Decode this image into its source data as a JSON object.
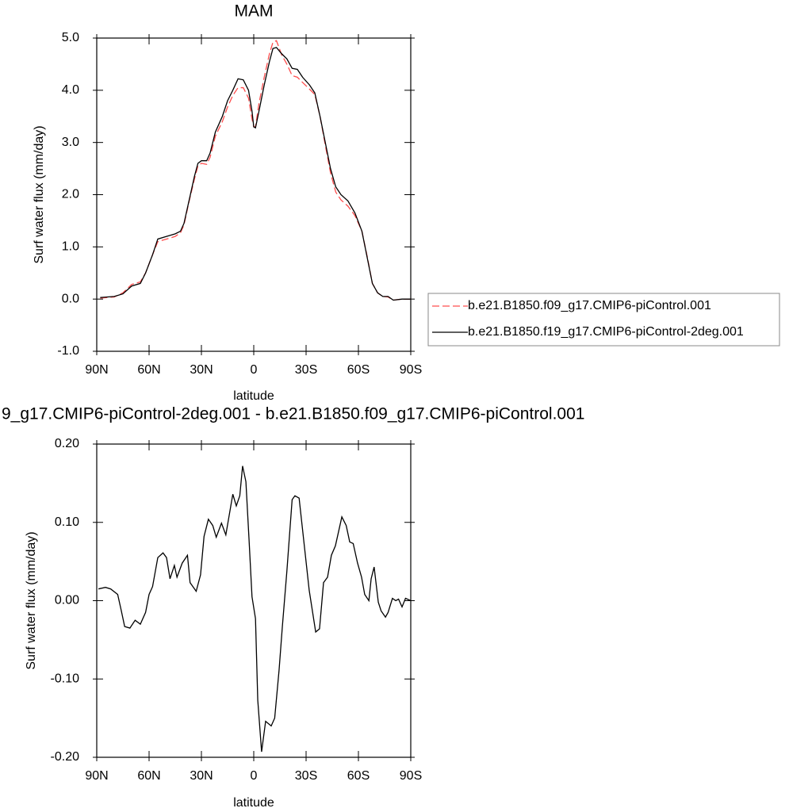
{
  "chart_data": [
    {
      "type": "line",
      "title": "MAM",
      "x_label": "latitude",
      "y_label": "Surf water flux (mm/day)",
      "x": [
        88,
        80,
        75,
        70,
        65,
        62,
        58,
        55,
        50,
        45,
        42,
        40,
        37,
        34,
        32,
        30,
        27,
        25,
        22,
        18,
        15,
        12,
        9,
        6,
        3,
        1,
        0,
        -1,
        -3,
        -6,
        -9,
        -11,
        -13,
        -16,
        -19,
        -22,
        -25,
        -28,
        -32,
        -35,
        -38,
        -41,
        -44,
        -47,
        -50,
        -54,
        -58,
        -62,
        -65,
        -68,
        -71,
        -74,
        -77,
        -80,
        -85,
        -90
      ],
      "series": [
        {
          "name": "b.e21.B1850.f09_g17.CMIP6-piControl.001",
          "color": "#ff4d4d",
          "line_style": "dashed",
          "values": [
            0.02,
            0.04,
            0.12,
            0.28,
            0.33,
            0.5,
            0.85,
            1.1,
            1.15,
            1.2,
            1.27,
            1.42,
            1.88,
            2.3,
            2.55,
            2.6,
            2.58,
            2.72,
            3.12,
            3.4,
            3.68,
            3.9,
            4.05,
            4.05,
            3.85,
            3.45,
            3.3,
            3.3,
            3.75,
            4.25,
            4.7,
            4.92,
            4.95,
            4.68,
            4.5,
            4.28,
            4.25,
            4.15,
            4.02,
            3.92,
            3.5,
            2.95,
            2.42,
            2.05,
            1.9,
            1.78,
            1.6,
            1.3,
            0.82,
            0.3,
            0.12,
            0.05,
            0.04,
            -0.02,
            0.0,
            0.0
          ]
        },
        {
          "name": "b.e21.B1850.f19_g17.CMIP6-piControl-2deg.001",
          "color": "#000000",
          "line_style": "solid",
          "values": [
            0.03,
            0.05,
            0.1,
            0.25,
            0.3,
            0.5,
            0.85,
            1.15,
            1.2,
            1.25,
            1.3,
            1.45,
            1.9,
            2.35,
            2.6,
            2.65,
            2.65,
            2.8,
            3.2,
            3.5,
            3.8,
            4.0,
            4.22,
            4.2,
            4.0,
            3.6,
            3.3,
            3.28,
            3.6,
            4.1,
            4.55,
            4.8,
            4.82,
            4.7,
            4.6,
            4.42,
            4.4,
            4.25,
            4.1,
            3.95,
            3.5,
            3.0,
            2.5,
            2.15,
            2.0,
            1.88,
            1.65,
            1.3,
            0.8,
            0.3,
            0.12,
            0.05,
            0.05,
            -0.02,
            0.0,
            0.0
          ]
        }
      ],
      "xlim": [
        90,
        -90
      ],
      "xticks": [
        {
          "value": 90,
          "label": "90N"
        },
        {
          "value": 60,
          "label": "60N"
        },
        {
          "value": 30,
          "label": "30N"
        },
        0,
        {
          "value": -30,
          "label": "30S"
        },
        {
          "value": -60,
          "label": "60S"
        },
        {
          "value": -90,
          "label": "90S"
        }
      ],
      "ylim": [
        -1,
        5
      ],
      "yticks": [
        {
          "value": 5,
          "label": "5.0"
        },
        {
          "value": 4,
          "label": "4.0"
        },
        {
          "value": 3,
          "label": "3.0"
        },
        {
          "value": 2,
          "label": "2.0"
        },
        {
          "value": 1,
          "label": "1.0"
        },
        {
          "value": 0,
          "label": "0.0"
        },
        {
          "value": -1,
          "label": "-1.0"
        }
      ],
      "legend": "right"
    },
    {
      "type": "line",
      "title": "9_g17.CMIP6-piControl-2deg.001 - b.e21.B1850.f09_g17.CMIP6-piControl.001",
      "x_label": "latitude",
      "y_label": "Surf water flux (mm/day)",
      "x": [
        89,
        85,
        82,
        78,
        76,
        74,
        71,
        68,
        65,
        62,
        60,
        58,
        55,
        52,
        50,
        48,
        45.5,
        44,
        41,
        38,
        36.5,
        33,
        30.5,
        28.5,
        26,
        23.5,
        21.5,
        18.5,
        16,
        12,
        10,
        8,
        6.4,
        4.5,
        2.7,
        1,
        -1,
        -2.3,
        -4.5,
        -6.8,
        -10,
        -12,
        -14.5,
        -16.4,
        -19,
        -22,
        -23.6,
        -26,
        -28.6,
        -31.8,
        -35.5,
        -37.7,
        -40,
        -42.3,
        -44.5,
        -46.8,
        -50.5,
        -53,
        -55,
        -57,
        -59.5,
        -61.8,
        -63.6,
        -66,
        -67.3,
        -69,
        -71.4,
        -73,
        -75.5,
        -77,
        -79.5,
        -81.4,
        -83,
        -85,
        -87,
        -90
      ],
      "values": [
        0.015,
        0.017,
        0.015,
        0.008,
        -0.012,
        -0.033,
        -0.035,
        -0.025,
        -0.03,
        -0.015,
        0.008,
        0.018,
        0.055,
        0.061,
        0.055,
        0.028,
        0.045,
        0.03,
        0.048,
        0.058,
        0.023,
        0.012,
        0.033,
        0.082,
        0.104,
        0.096,
        0.081,
        0.099,
        0.084,
        0.136,
        0.121,
        0.134,
        0.172,
        0.152,
        0.078,
        0.005,
        -0.023,
        -0.127,
        -0.193,
        -0.154,
        -0.16,
        -0.15,
        -0.089,
        -0.033,
        0.038,
        0.129,
        0.134,
        0.131,
        0.078,
        0.013,
        -0.04,
        -0.036,
        0.023,
        0.03,
        0.058,
        0.07,
        0.107,
        0.096,
        0.075,
        0.073,
        0.048,
        0.03,
        0.008,
        0.0,
        0.028,
        0.043,
        -0.002,
        -0.013,
        -0.021,
        -0.015,
        0.003,
        0.0,
        0.002,
        -0.008,
        0.003,
        0.0
      ],
      "color": "#000000",
      "xlim": [
        90,
        -90
      ],
      "xticks": [
        {
          "value": 90,
          "label": "90N"
        },
        {
          "value": 60,
          "label": "60N"
        },
        {
          "value": 30,
          "label": "30N"
        },
        0,
        {
          "value": -30,
          "label": "30S"
        },
        {
          "value": -60,
          "label": "60S"
        },
        {
          "value": -90,
          "label": "90S"
        }
      ],
      "ylim": [
        -0.2,
        0.2
      ],
      "yticks": [
        {
          "value": 0.2,
          "label": "0.20"
        },
        {
          "value": 0.1,
          "label": "0.10"
        },
        {
          "value": 0,
          "label": "0.00"
        },
        {
          "value": -0.1,
          "label": "-0.10"
        },
        {
          "value": -0.2,
          "label": "-0.20"
        }
      ]
    }
  ]
}
